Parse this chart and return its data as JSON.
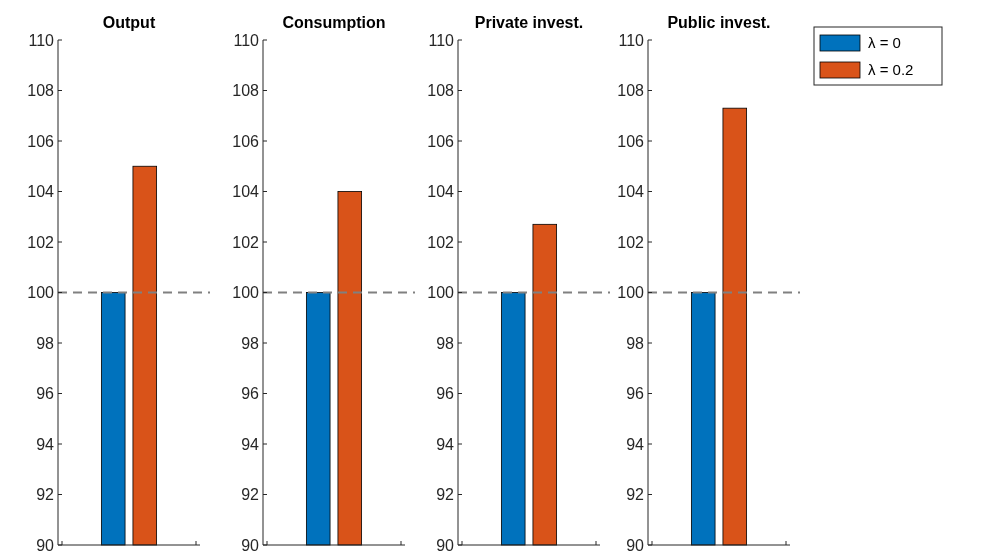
{
  "chart_data": [
    {
      "type": "bar",
      "title": "Output",
      "categories": [
        null
      ],
      "series": [
        {
          "color": "#0072bd",
          "values": [
            100
          ]
        },
        {
          "color": "#d95319",
          "values": [
            105
          ]
        }
      ],
      "ylim": [
        90,
        110
      ],
      "yticks": [
        90,
        92,
        94,
        96,
        98,
        100,
        102,
        104,
        106,
        108,
        110
      ],
      "ref_lines": [
        {
          "axis": "y",
          "value": 100,
          "color": "#808080",
          "line_style": "dashed"
        }
      ],
      "grid": false,
      "legend": false
    },
    {
      "type": "bar",
      "title": "Consumption",
      "categories": [
        null
      ],
      "series": [
        {
          "color": "#0072bd",
          "values": [
            100
          ]
        },
        {
          "color": "#d95319",
          "values": [
            104
          ]
        }
      ],
      "ylim": [
        90,
        110
      ],
      "yticks": [
        90,
        92,
        94,
        96,
        98,
        100,
        102,
        104,
        106,
        108,
        110
      ],
      "ref_lines": [
        {
          "axis": "y",
          "value": 100,
          "color": "#808080",
          "line_style": "dashed"
        }
      ],
      "grid": false,
      "legend": false
    },
    {
      "type": "bar",
      "title": "Private invest.",
      "categories": [
        null
      ],
      "series": [
        {
          "color": "#0072bd",
          "values": [
            100
          ]
        },
        {
          "color": "#d95319",
          "values": [
            102.7
          ]
        }
      ],
      "ylim": [
        90,
        110
      ],
      "yticks": [
        90,
        92,
        94,
        96,
        98,
        100,
        102,
        104,
        106,
        108,
        110
      ],
      "ref_lines": [
        {
          "axis": "y",
          "value": 100,
          "color": "#808080",
          "line_style": "dashed"
        }
      ],
      "grid": false,
      "legend": false
    },
    {
      "type": "bar",
      "title": "Public invest.",
      "categories": [
        null
      ],
      "series": [
        {
          "name": "λ = 0",
          "color": "#0072bd",
          "values": [
            100
          ]
        },
        {
          "name": "λ =  0.2",
          "color": "#d95319",
          "values": [
            107.3
          ]
        }
      ],
      "ylim": [
        90,
        110
      ],
      "yticks": [
        90,
        92,
        94,
        96,
        98,
        100,
        102,
        104,
        106,
        108,
        110
      ],
      "ref_lines": [
        {
          "axis": "y",
          "value": 100,
          "color": "#808080",
          "line_style": "dashed"
        }
      ],
      "grid": false,
      "legend": "top right"
    }
  ]
}
